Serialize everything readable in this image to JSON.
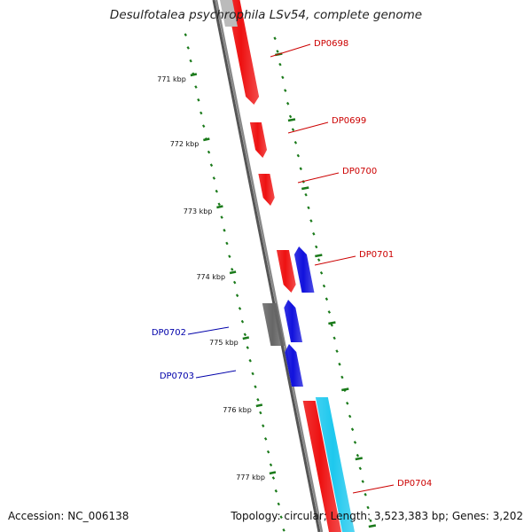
{
  "title": "Desulfotalea psychrophila LSv54, complete genome",
  "footer": {
    "accession": "Accession: NC_006138",
    "topology": "Topology: circular; Length: 3,523,383 bp; Genes: 3,202"
  },
  "colors": {
    "forward_gene": "#ee1111",
    "reverse_gene": "#1111dd",
    "rna_gene": "#1ec8ee",
    "pseudo_gene": "#666666",
    "backbone": "#888888",
    "ticks": "#1a7a1a",
    "forward_label": "#cc0000",
    "reverse_label": "#0000aa"
  },
  "tick_labels": [
    "771 kbp",
    "772 kbp",
    "773 kbp",
    "774 kbp",
    "775 kbp",
    "776 kbp",
    "777 kbp"
  ],
  "gene_labels": [
    {
      "id": "DP0698",
      "strand": "forward"
    },
    {
      "id": "DP0699",
      "strand": "forward"
    },
    {
      "id": "DP0700",
      "strand": "forward"
    },
    {
      "id": "DP0701",
      "strand": "forward"
    },
    {
      "id": "DP0702",
      "strand": "reverse"
    },
    {
      "id": "DP0703",
      "strand": "reverse"
    },
    {
      "id": "DP0704",
      "strand": "forward"
    }
  ]
}
